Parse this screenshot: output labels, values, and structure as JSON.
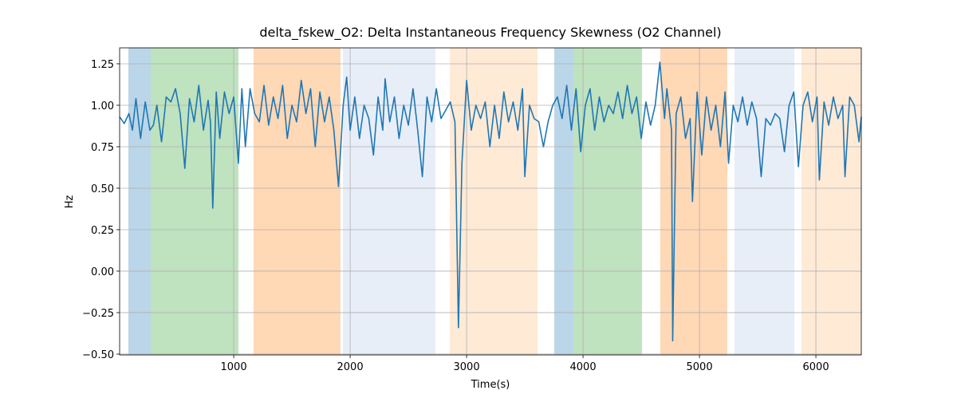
{
  "chart_data": {
    "type": "line",
    "title": "delta_fskew_O2: Delta Instantaneous Frequency Skewness (O2 Channel)",
    "xlabel": "Time(s)",
    "ylabel": "Hz",
    "xlim": [
      20,
      6390
    ],
    "ylim": [
      -0.505,
      1.346
    ],
    "xticks": [
      1000,
      2000,
      3000,
      4000,
      5000,
      6000
    ],
    "yticks": [
      {
        "value": -0.5,
        "label": "−0.50"
      },
      {
        "value": -0.25,
        "label": "−0.25"
      },
      {
        "value": 0,
        "label": "0.00"
      },
      {
        "value": 0.25,
        "label": "0.25"
      },
      {
        "value": 0.5,
        "label": "0.50"
      },
      {
        "value": 0.75,
        "label": "0.75"
      },
      {
        "value": 1,
        "label": "1.00"
      },
      {
        "value": 1.25,
        "label": "1.25"
      }
    ],
    "grid": true,
    "span_alpha": 0.3,
    "spans": [
      {
        "start": 95,
        "end": 287,
        "color": "#1f77b4"
      },
      {
        "start": 287,
        "end": 1040,
        "color": "#2ca02c"
      },
      {
        "start": 1170,
        "end": 1917,
        "color": "#ff7f0e"
      },
      {
        "start": 1938,
        "end": 2732,
        "color": "#aec7e8"
      },
      {
        "start": 2856,
        "end": 3609,
        "color": "#ffbb78"
      },
      {
        "start": 3753,
        "end": 3917,
        "color": "#1f77b4"
      },
      {
        "start": 3917,
        "end": 4506,
        "color": "#2ca02c"
      },
      {
        "start": 4664,
        "end": 5239,
        "color": "#ff7f0e"
      },
      {
        "start": 5301,
        "end": 5815,
        "color": "#aec7e8"
      },
      {
        "start": 5876,
        "end": 6390,
        "color": "#ffbb78"
      }
    ],
    "x": [
      20,
      60,
      100,
      130,
      160,
      200,
      240,
      280,
      310,
      340,
      380,
      420,
      460,
      500,
      540,
      580,
      620,
      660,
      700,
      740,
      780,
      800,
      820,
      850,
      880,
      920,
      960,
      1000,
      1040,
      1070,
      1100,
      1140,
      1180,
      1220,
      1260,
      1300,
      1340,
      1380,
      1420,
      1460,
      1500,
      1540,
      1580,
      1620,
      1660,
      1700,
      1740,
      1780,
      1820,
      1860,
      1900,
      1940,
      1970,
      2000,
      2040,
      2080,
      2120,
      2160,
      2200,
      2240,
      2280,
      2300,
      2340,
      2380,
      2420,
      2460,
      2500,
      2540,
      2580,
      2620,
      2660,
      2700,
      2740,
      2780,
      2820,
      2860,
      2900,
      2930,
      2960,
      3000,
      3040,
      3080,
      3120,
      3160,
      3200,
      3240,
      3280,
      3320,
      3360,
      3400,
      3440,
      3480,
      3500,
      3540,
      3580,
      3620,
      3660,
      3700,
      3740,
      3780,
      3820,
      3860,
      3900,
      3940,
      3980,
      4020,
      4060,
      4100,
      4140,
      4180,
      4220,
      4260,
      4300,
      4340,
      4380,
      4420,
      4460,
      4500,
      4540,
      4580,
      4620,
      4660,
      4700,
      4720,
      4760,
      4770,
      4800,
      4840,
      4880,
      4920,
      4940,
      4980,
      5020,
      5060,
      5100,
      5140,
      5180,
      5220,
      5250,
      5290,
      5330,
      5370,
      5410,
      5450,
      5490,
      5530,
      5570,
      5610,
      5650,
      5690,
      5730,
      5770,
      5810,
      5850,
      5890,
      5930,
      5970,
      6010,
      6030,
      6070,
      6110,
      6150,
      6190,
      6230,
      6250,
      6290,
      6330,
      6370,
      6390
    ],
    "series": [
      {
        "color": "#1f77b4",
        "values": [
          0.93,
          0.89,
          0.95,
          0.85,
          1.04,
          0.8,
          1.02,
          0.85,
          0.88,
          1.0,
          0.78,
          1.05,
          1.02,
          1.1,
          0.95,
          0.62,
          1.04,
          0.9,
          1.12,
          0.85,
          1.03,
          0.9,
          0.38,
          1.08,
          0.8,
          1.08,
          0.95,
          1.05,
          0.65,
          1.1,
          0.75,
          1.1,
          0.95,
          0.9,
          1.12,
          0.88,
          1.05,
          0.92,
          1.12,
          0.8,
          1.0,
          0.9,
          1.15,
          0.95,
          1.1,
          0.75,
          1.08,
          0.9,
          1.05,
          0.85,
          0.51,
          1.0,
          1.17,
          0.85,
          1.05,
          0.8,
          1.0,
          0.92,
          0.7,
          1.05,
          0.85,
          1.16,
          0.9,
          1.05,
          0.8,
          1.0,
          0.88,
          1.1,
          0.85,
          0.57,
          1.05,
          0.9,
          1.1,
          0.92,
          0.97,
          1.02,
          0.9,
          -0.34,
          0.65,
          1.15,
          0.85,
          1.0,
          0.92,
          1.02,
          0.75,
          1.0,
          0.8,
          1.08,
          0.9,
          1.02,
          0.85,
          1.1,
          0.57,
          1.0,
          0.92,
          0.9,
          0.75,
          0.9,
          1.0,
          1.05,
          0.92,
          1.12,
          0.85,
          1.1,
          0.72,
          1.0,
          1.1,
          0.85,
          1.05,
          0.9,
          1.0,
          0.95,
          1.08,
          0.92,
          1.12,
          0.95,
          1.05,
          0.8,
          1.02,
          0.88,
          1.0,
          1.26,
          0.92,
          1.1,
          0.85,
          -0.42,
          0.95,
          1.05,
          0.8,
          0.92,
          0.42,
          1.08,
          0.7,
          1.05,
          0.85,
          1.0,
          0.75,
          1.08,
          0.65,
          1.0,
          0.9,
          1.05,
          0.88,
          1.02,
          0.92,
          0.57,
          0.92,
          0.88,
          0.95,
          0.92,
          0.72,
          1.0,
          1.08,
          0.63,
          1.0,
          1.08,
          0.9,
          1.05,
          0.55,
          1.02,
          0.88,
          1.05,
          0.92,
          1.0,
          0.57,
          1.05,
          1.0,
          0.78,
          0.93
        ]
      }
    ]
  }
}
